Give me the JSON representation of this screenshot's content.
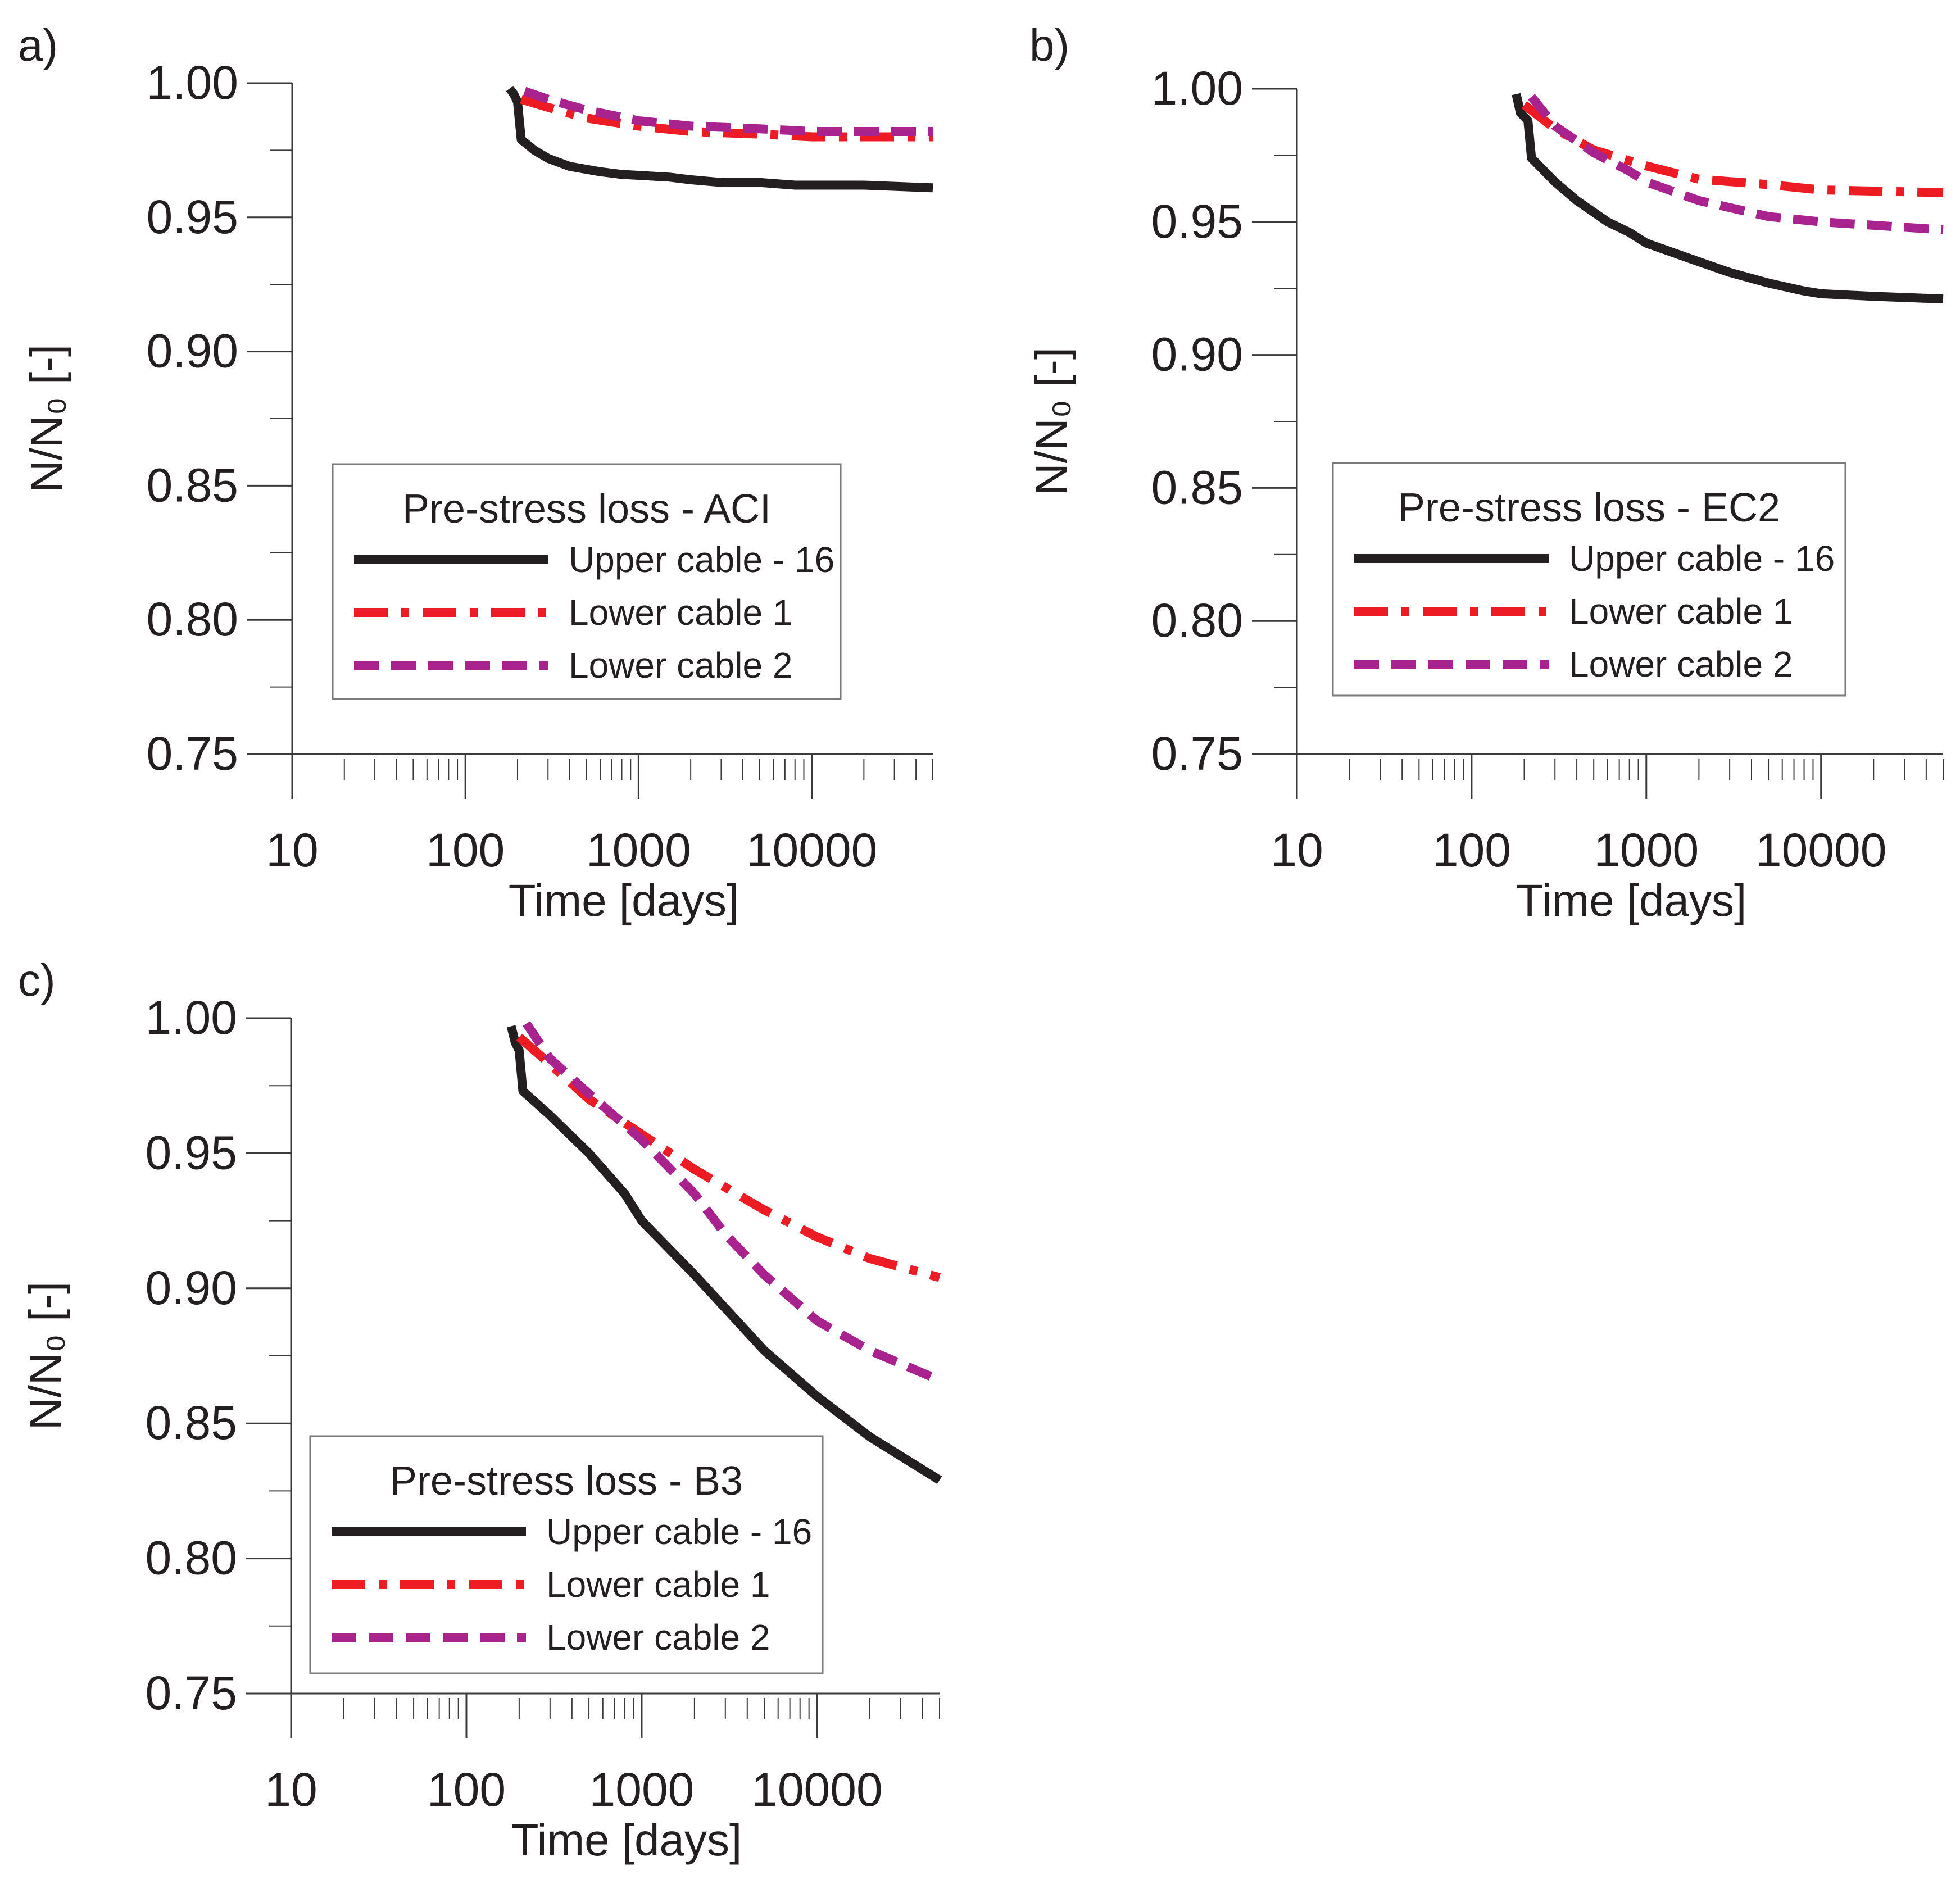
{
  "colors": {
    "upper": "#231f20",
    "lower1": "#ed1c24",
    "lower2": "#a8238e",
    "axis": "#3a3a3a",
    "text": "#231f20"
  },
  "chart_data": [
    {
      "panel": "a)",
      "type": "line",
      "xlabel": "Time [days]",
      "ylabel": "N/N₀ [-]",
      "xscale": "log",
      "xlim": [
        10,
        50000
      ],
      "ylim": [
        0.75,
        1.0
      ],
      "xticks": [
        "10",
        "100",
        "1000",
        "10000"
      ],
      "yticks": [
        "1.00",
        "0.95",
        "0.90",
        "0.85",
        "0.80",
        "0.75"
      ],
      "legend": {
        "title": "Pre-stress loss - ACI",
        "position": "center-left"
      },
      "series": [
        {
          "name": "Upper cable - 16",
          "style": "solid",
          "x": [
            180,
            190,
            200,
            210,
            250,
            300,
            400,
            600,
            800,
            1500,
            2000,
            3000,
            5000,
            8000,
            20000,
            50000
          ],
          "y": [
            0.998,
            0.996,
            0.993,
            0.979,
            0.975,
            0.972,
            0.969,
            0.967,
            0.966,
            0.965,
            0.964,
            0.963,
            0.963,
            0.962,
            0.962,
            0.961
          ]
        },
        {
          "name": "Lower cable 1",
          "style": "dashdot",
          "x": [
            210,
            300,
            500,
            1000,
            2000,
            5000,
            10000,
            50000
          ],
          "y": [
            0.994,
            0.991,
            0.987,
            0.984,
            0.982,
            0.981,
            0.98,
            0.98
          ]
        },
        {
          "name": "Lower cable 2",
          "style": "dashed",
          "x": [
            220,
            300,
            500,
            1000,
            2000,
            5000,
            10000,
            50000
          ],
          "y": [
            0.997,
            0.994,
            0.99,
            0.986,
            0.984,
            0.983,
            0.982,
            0.982
          ]
        }
      ]
    },
    {
      "panel": "b)",
      "type": "line",
      "xlabel": "Time [days]",
      "ylabel": "N/N₀ [-]",
      "xscale": "log",
      "xlim": [
        10,
        50000
      ],
      "ylim": [
        0.75,
        1.0
      ],
      "xticks": [
        "10",
        "100",
        "1000",
        "10000"
      ],
      "yticks": [
        "1.00",
        "0.95",
        "0.90",
        "0.85",
        "0.80",
        "0.75"
      ],
      "legend": {
        "title": "Pre-stress loss - EC2",
        "position": "center-left"
      },
      "series": [
        {
          "name": "Upper cable - 16",
          "style": "solid",
          "x": [
            180,
            190,
            210,
            220,
            300,
            400,
            600,
            800,
            1000,
            2000,
            3000,
            5000,
            8000,
            10000,
            20000,
            50000
          ],
          "y": [
            0.998,
            0.991,
            0.988,
            0.974,
            0.965,
            0.958,
            0.95,
            0.946,
            0.942,
            0.935,
            0.931,
            0.927,
            0.924,
            0.923,
            0.922,
            0.921
          ]
        },
        {
          "name": "Lower cable 1",
          "style": "dashdot",
          "x": [
            200,
            300,
            500,
            1000,
            2000,
            5000,
            10000,
            50000
          ],
          "y": [
            0.994,
            0.985,
            0.977,
            0.971,
            0.966,
            0.964,
            0.962,
            0.961
          ]
        },
        {
          "name": "Lower cable 2",
          "style": "dashed",
          "x": [
            220,
            300,
            500,
            800,
            1000,
            2000,
            5000,
            10000,
            50000
          ],
          "y": [
            0.997,
            0.986,
            0.976,
            0.969,
            0.965,
            0.958,
            0.952,
            0.95,
            0.947
          ]
        }
      ]
    },
    {
      "panel": "c)",
      "type": "line",
      "xlabel": "Time [days]",
      "ylabel": "N/N₀ [-]",
      "xscale": "log",
      "xlim": [
        10,
        50000
      ],
      "ylim": [
        0.75,
        1.0
      ],
      "xticks": [
        "10",
        "100",
        "1000",
        "10000"
      ],
      "yticks": [
        "1.00",
        "0.95",
        "0.90",
        "0.85",
        "0.80",
        "0.75"
      ],
      "legend": {
        "title": "Pre-stress loss - B3",
        "position": "center-left"
      },
      "series": [
        {
          "name": "Upper cable - 16",
          "style": "solid",
          "x": [
            180,
            190,
            200,
            210,
            300,
            500,
            800,
            1000,
            2000,
            5000,
            10000,
            20000,
            50000
          ],
          "y": [
            0.997,
            0.991,
            0.988,
            0.973,
            0.964,
            0.95,
            0.935,
            0.925,
            0.905,
            0.877,
            0.86,
            0.845,
            0.829
          ]
        },
        {
          "name": "Lower cable 1",
          "style": "dashdot",
          "x": [
            200,
            300,
            500,
            1000,
            2000,
            5000,
            10000,
            20000,
            50000
          ],
          "y": [
            0.993,
            0.983,
            0.97,
            0.957,
            0.944,
            0.929,
            0.919,
            0.911,
            0.904
          ]
        },
        {
          "name": "Lower cable 2",
          "style": "dashed",
          "x": [
            220,
            300,
            500,
            1000,
            2000,
            3000,
            5000,
            10000,
            20000,
            50000
          ],
          "y": [
            0.998,
            0.985,
            0.972,
            0.955,
            0.935,
            0.92,
            0.905,
            0.888,
            0.877,
            0.866
          ]
        }
      ]
    }
  ]
}
